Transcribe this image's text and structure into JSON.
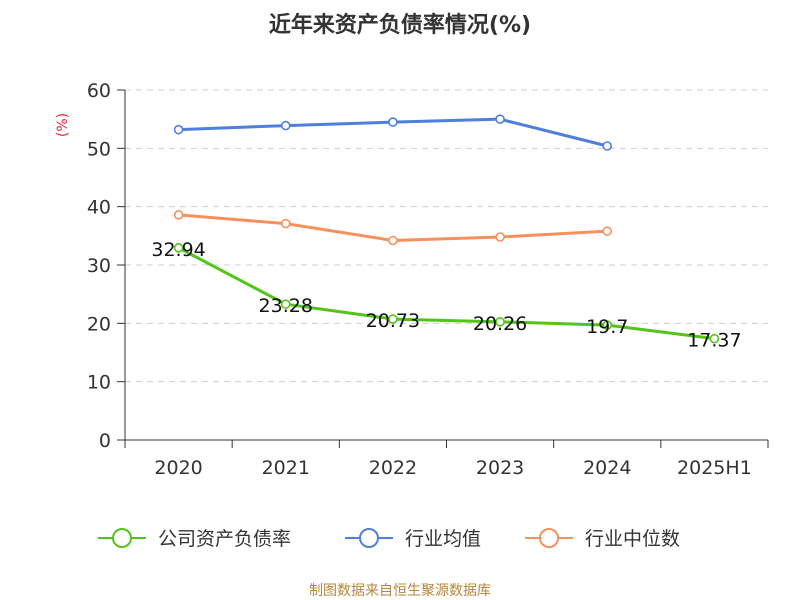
{
  "chart_data": {
    "type": "line",
    "title": "近年来资产负债率情况(%)",
    "ylabel": "(%)",
    "xlabel": "",
    "categories": [
      "2020",
      "2021",
      "2022",
      "2023",
      "2024",
      "2025H1"
    ],
    "ylim": [
      0,
      60
    ],
    "yticks": [
      "0",
      "10",
      "20",
      "30",
      "40",
      "50",
      "60"
    ],
    "grid": true,
    "legend_position": "bottom",
    "series": [
      {
        "name": "公司资产负债率",
        "color": "#52c41a",
        "values": [
          32.94,
          23.28,
          20.73,
          20.26,
          19.7,
          17.37
        ],
        "labels": [
          "32.94",
          "23.28",
          "20.73",
          "20.26",
          "19.7",
          "17.37"
        ]
      },
      {
        "name": "行业均值",
        "color": "#4e7fdc",
        "values": [
          53.2,
          53.9,
          54.5,
          55.0,
          50.4,
          null
        ]
      },
      {
        "name": "行业中位数",
        "color": "#f7915c",
        "values": [
          38.6,
          37.1,
          34.2,
          34.8,
          35.8,
          null
        ]
      }
    ],
    "source": "制图数据来自恒生聚源数据库"
  }
}
